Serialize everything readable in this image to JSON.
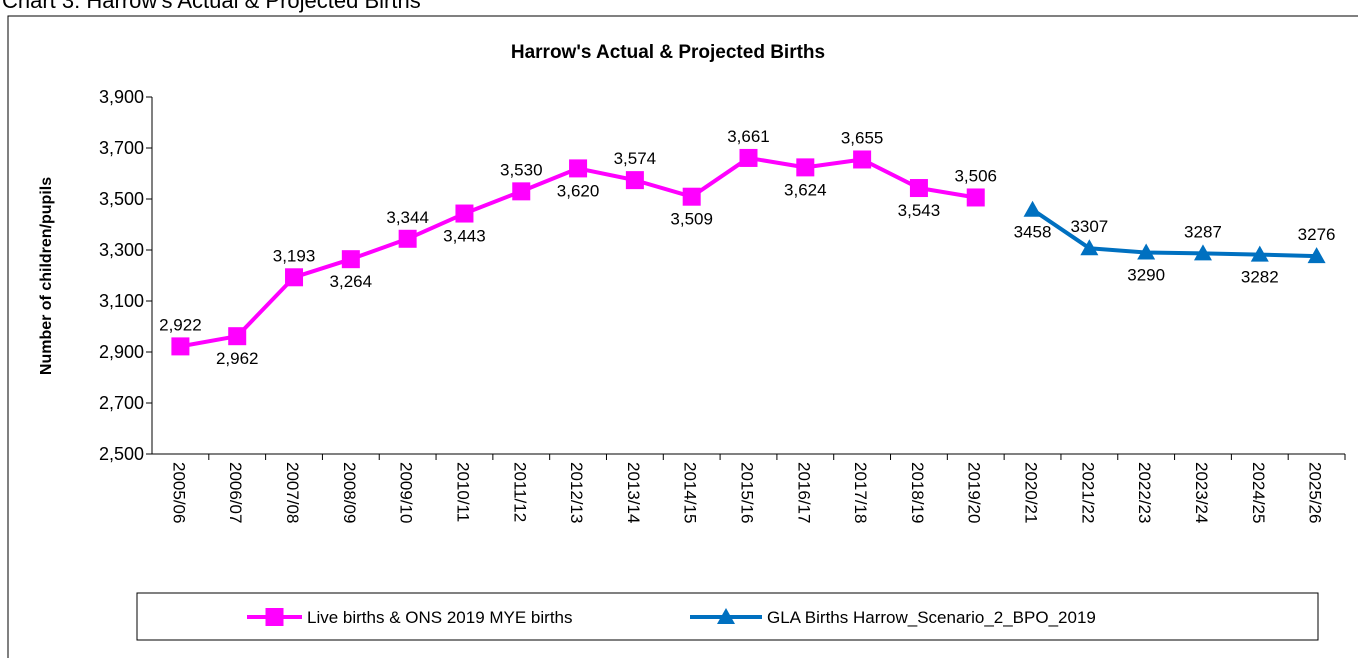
{
  "heading": "Chart 3: Harrow's Actual & Projected Births",
  "chart_data": {
    "type": "line",
    "title": "Harrow's Actual & Projected Births",
    "y_label": "Number of children/pupils",
    "categories": [
      "2005/06",
      "2006/07",
      "2007/08",
      "2008/09",
      "2009/10",
      "2010/11",
      "2011/12",
      "2012/13",
      "2013/14",
      "2014/15",
      "2015/16",
      "2016/17",
      "2017/18",
      "2018/19",
      "2019/20",
      "2020/21",
      "2021/22",
      "2022/23",
      "2023/24",
      "2024/25",
      "2025/26"
    ],
    "series": [
      {
        "name": "Live births & ONS 2019 MYE births",
        "color": "#ff00ff",
        "marker": "square",
        "values": [
          2922,
          2962,
          3193,
          3264,
          3344,
          3443,
          3530,
          3620,
          3574,
          3509,
          3661,
          3624,
          3655,
          3543,
          3506,
          null,
          null,
          null,
          null,
          null,
          null
        ],
        "value_labels": [
          "2,922",
          "2,962",
          "3,193",
          "3,264",
          "3,344",
          "3,443",
          "3,530",
          "3,620",
          "3,574",
          "3,509",
          "3,661",
          "3,624",
          "3,655",
          "3,543",
          "3,506",
          null,
          null,
          null,
          null,
          null,
          null
        ]
      },
      {
        "name": "GLA Births Harrow_Scenario_2_BPO_2019",
        "color": "#0070c0",
        "marker": "triangle",
        "values": [
          null,
          null,
          null,
          null,
          null,
          null,
          null,
          null,
          null,
          null,
          null,
          null,
          null,
          null,
          null,
          3458,
          3307,
          3290,
          3287,
          3282,
          3276
        ]
      }
    ],
    "ylim": [
      2500,
      3900
    ],
    "yticks": [
      {
        "value": 2500,
        "label": "2,500"
      },
      {
        "value": 2700,
        "label": "2,700"
      },
      {
        "value": 2900,
        "label": "2,900"
      },
      {
        "value": 3100,
        "label": "3,100"
      },
      {
        "value": 3300,
        "label": "3,300"
      },
      {
        "value": 3500,
        "label": "3,500"
      },
      {
        "value": 3700,
        "label": "3,700"
      },
      {
        "value": 3900,
        "label": "3,900"
      }
    ],
    "grid": false,
    "legend": "bottom"
  }
}
